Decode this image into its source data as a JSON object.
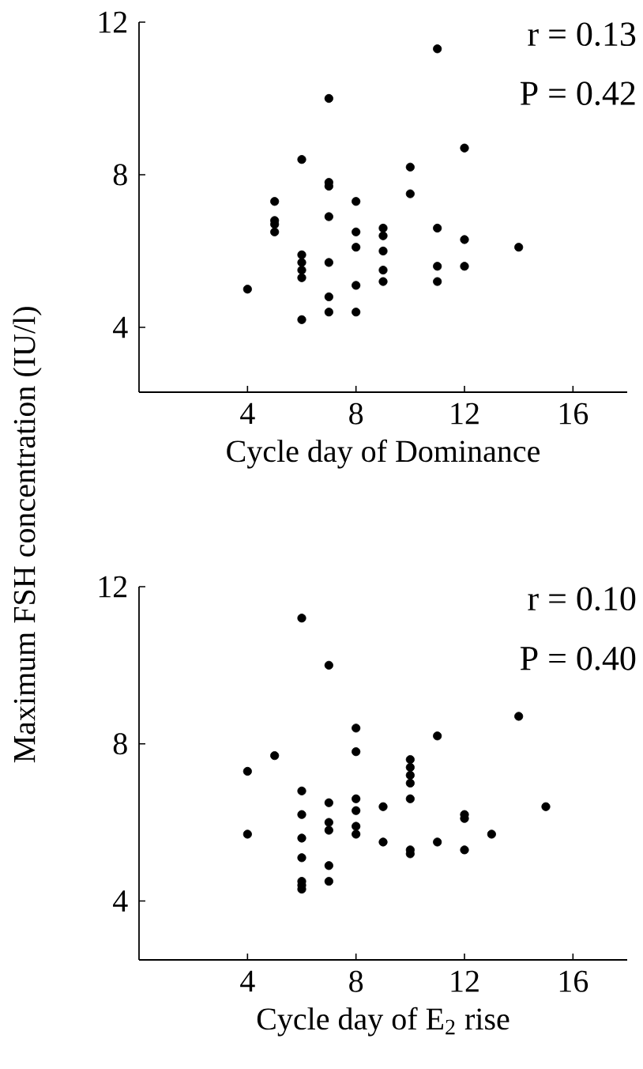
{
  "chart_data": [
    {
      "type": "scatter",
      "ylabel": "Maximum FSH concentration (IU/l)",
      "xlabel": "Cycle day of Dominance",
      "annotations": [
        "r = 0.13",
        "P = 0.42"
      ],
      "marker": "circle",
      "color": "#000000",
      "xlim": [
        0,
        18
      ],
      "ylim": [
        2.3,
        12
      ],
      "xticks": [
        4,
        8,
        12,
        16
      ],
      "yticks": [
        4,
        8,
        12
      ],
      "x": [
        4,
        5,
        5,
        5,
        5,
        6,
        6,
        6,
        6,
        6,
        6,
        7,
        7,
        7,
        7,
        7,
        7,
        7,
        8,
        8,
        8,
        8,
        8,
        9,
        9,
        9,
        9,
        9,
        10,
        10,
        11,
        11,
        11,
        11,
        12,
        12,
        12,
        14
      ],
      "values": [
        5.0,
        7.3,
        6.8,
        6.7,
        6.5,
        8.4,
        5.9,
        5.7,
        5.5,
        5.3,
        4.2,
        10.0,
        7.8,
        7.7,
        6.9,
        5.7,
        4.8,
        4.4,
        7.3,
        6.5,
        6.1,
        5.1,
        4.4,
        6.6,
        6.4,
        6.0,
        5.5,
        5.2,
        8.2,
        7.5,
        11.3,
        6.6,
        5.6,
        5.2,
        8.7,
        6.3,
        5.6,
        6.1
      ]
    },
    {
      "type": "scatter",
      "xlabel": "Cycle day of E$_{2}$ rise",
      "annotations": [
        "r = 0.10",
        "P = 0.40"
      ],
      "marker": "circle",
      "color": "#000000",
      "xlim": [
        0,
        18
      ],
      "ylim": [
        2.5,
        12
      ],
      "xticks": [
        4,
        8,
        12,
        16
      ],
      "yticks": [
        4,
        8,
        12
      ],
      "x": [
        4,
        4,
        5,
        6,
        6,
        6,
        6,
        6,
        6,
        6,
        6,
        7,
        7,
        7,
        7,
        7,
        7,
        8,
        8,
        8,
        8,
        8,
        8,
        9,
        9,
        10,
        10,
        10,
        10,
        10,
        10,
        10,
        11,
        11,
        12,
        12,
        12,
        13,
        14,
        15
      ],
      "values": [
        7.3,
        5.7,
        7.7,
        11.2,
        6.8,
        6.2,
        5.6,
        5.1,
        4.5,
        4.4,
        4.3,
        10.0,
        6.5,
        6.0,
        5.8,
        4.9,
        4.5,
        8.4,
        7.8,
        6.6,
        6.3,
        5.9,
        5.7,
        6.4,
        5.5,
        7.6,
        7.4,
        7.2,
        7.0,
        6.6,
        5.3,
        5.2,
        8.2,
        5.5,
        6.2,
        6.1,
        5.3,
        5.7,
        8.7,
        6.4
      ]
    }
  ]
}
